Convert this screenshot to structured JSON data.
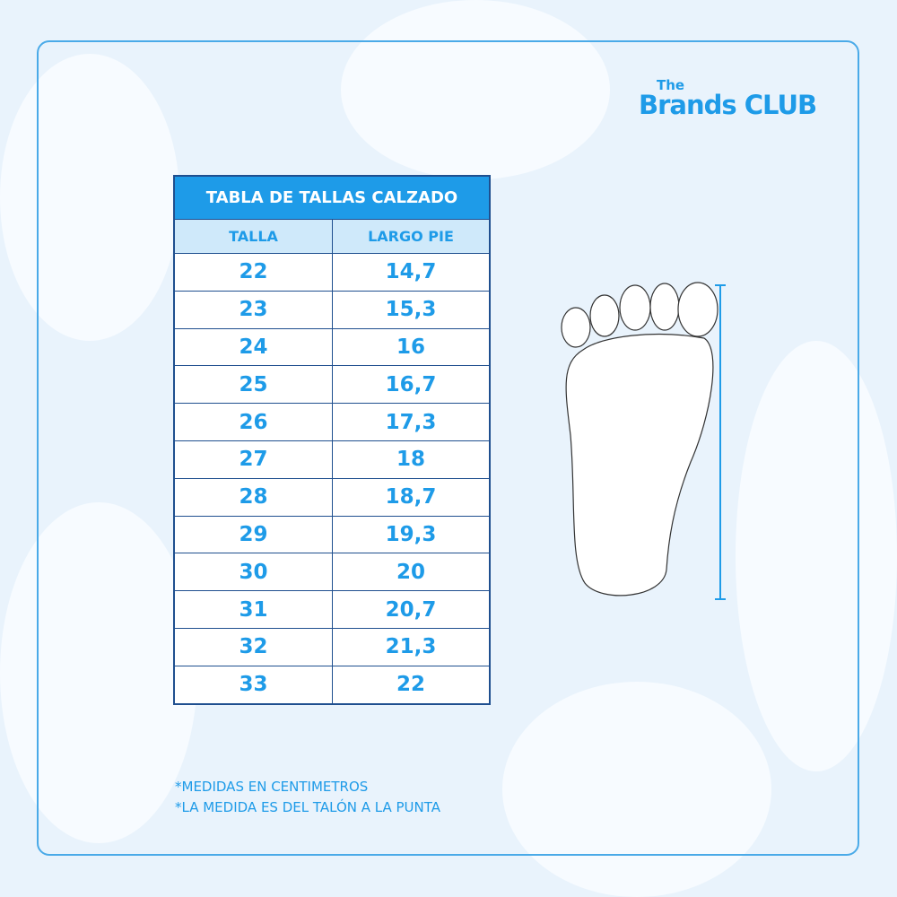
{
  "brand": {
    "line1": "The",
    "line2": "Brands CLUB"
  },
  "table": {
    "title": "TABLA DE TALLAS CALZADO",
    "headers": [
      "TALLA",
      "LARGO PIE"
    ],
    "rows": [
      [
        "22",
        "14,7"
      ],
      [
        "23",
        "15,3"
      ],
      [
        "24",
        "16"
      ],
      [
        "25",
        "16,7"
      ],
      [
        "26",
        "17,3"
      ],
      [
        "27",
        "18"
      ],
      [
        "28",
        "18,7"
      ],
      [
        "29",
        "19,3"
      ],
      [
        "30",
        "20"
      ],
      [
        "31",
        "20,7"
      ],
      [
        "32",
        "21,3"
      ],
      [
        "33",
        "22"
      ]
    ]
  },
  "notes": [
    "*MEDIDAS EN CENTIMETROS",
    "*LA MEDIDA ES DEL TALÓN A LA PUNTA"
  ],
  "colors": {
    "accent": "#1e9be8",
    "border": "#1f4f8f",
    "subheader": "#cfe9fa",
    "background": "#e9f3fc"
  }
}
